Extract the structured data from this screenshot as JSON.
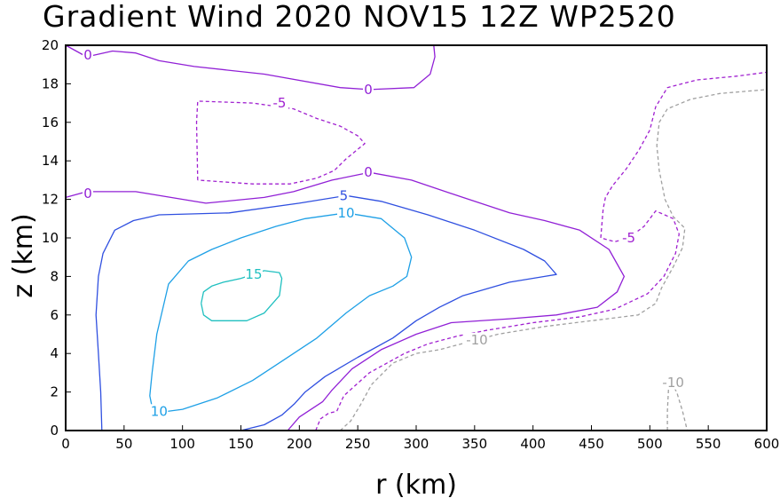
{
  "chart_data": {
    "type": "contour",
    "title": "Gradient Wind 2020 NOV15 12Z  WP2520",
    "xlabel": "r (km)",
    "ylabel": "z (km)",
    "xlim": [
      0,
      600
    ],
    "ylim": [
      0,
      20
    ],
    "xticks": [
      "0",
      "50",
      "100",
      "150",
      "200",
      "250",
      "300",
      "350",
      "400",
      "450",
      "500",
      "550",
      "600"
    ],
    "yticks": [
      "0",
      "2",
      "4",
      "6",
      "8",
      "10",
      "12",
      "14",
      "16",
      "18",
      "20"
    ],
    "grid": false,
    "legend": "none",
    "levels": [
      {
        "level": 15,
        "color": "#20c0c0",
        "dashed": false,
        "lines": [
          [
            [
              116,
              6.6
            ],
            [
              118,
              6.0
            ],
            [
              125,
              5.7
            ],
            [
              140,
              5.7
            ],
            [
              155,
              5.7
            ],
            [
              170,
              6.1
            ],
            [
              183,
              7.0
            ],
            [
              185,
              7.9
            ],
            [
              183,
              8.2
            ],
            [
              170,
              8.3
            ],
            [
              150,
              7.9
            ],
            [
              135,
              7.7
            ],
            [
              125,
              7.5
            ],
            [
              118,
              7.2
            ],
            [
              116,
              6.6
            ]
          ]
        ]
      },
      {
        "level": 10,
        "color": "#1ea0e6",
        "dashed": false,
        "lines": [
          [
            [
              75,
              0.9
            ],
            [
              100,
              1.1
            ],
            [
              130,
              1.7
            ],
            [
              160,
              2.6
            ],
            [
              185,
              3.6
            ],
            [
              215,
              4.8
            ],
            [
              240,
              6.1
            ],
            [
              260,
              7.0
            ],
            [
              280,
              7.5
            ],
            [
              292,
              8.0
            ],
            [
              296,
              9.0
            ],
            [
              290,
              10.0
            ],
            [
              270,
              11.0
            ],
            [
              240,
              11.3
            ],
            [
              205,
              11.0
            ],
            [
              180,
              10.6
            ],
            [
              150,
              10.0
            ],
            [
              125,
              9.4
            ],
            [
              105,
              8.8
            ],
            [
              88,
              7.6
            ],
            [
              78,
              5.0
            ],
            [
              74,
              3.0
            ],
            [
              72,
              1.8
            ],
            [
              75,
              0.9
            ]
          ]
        ]
      },
      {
        "level": 5,
        "color": "#3050e0",
        "dashed": false,
        "lines": [
          [
            [
              31,
              0
            ],
            [
              30,
              2.0
            ],
            [
              28,
              4.0
            ],
            [
              26,
              6.0
            ],
            [
              28,
              8.0
            ],
            [
              32,
              9.2
            ],
            [
              42,
              10.4
            ],
            [
              58,
              10.9
            ],
            [
              80,
              11.2
            ],
            [
              140,
              11.3
            ],
            [
              200,
              11.8
            ],
            [
              240,
              12.2
            ],
            [
              270,
              11.9
            ],
            [
              310,
              11.2
            ],
            [
              350,
              10.4
            ],
            [
              392,
              9.4
            ],
            [
              410,
              8.8
            ],
            [
              420,
              8.1
            ],
            [
              410,
              8.0
            ],
            [
              380,
              7.7
            ],
            [
              340,
              7.0
            ],
            [
              320,
              6.4
            ],
            [
              300,
              5.7
            ],
            [
              280,
              4.8
            ],
            [
              250,
              3.8
            ],
            [
              222,
              2.8
            ],
            [
              205,
              2.0
            ],
            [
              196,
              1.4
            ],
            [
              185,
              0.8
            ],
            [
              170,
              0.3
            ],
            [
              150,
              0
            ]
          ]
        ]
      },
      {
        "level": 0,
        "color": "#9120d6",
        "dashed": false,
        "lines": [
          [
            [
              0,
              20
            ],
            [
              18,
              19.4
            ],
            [
              40,
              19.7
            ],
            [
              60,
              19.6
            ],
            [
              80,
              19.2
            ],
            [
              110,
              18.9
            ],
            [
              170,
              18.5
            ],
            [
              235,
              17.8
            ],
            [
              260,
              17.7
            ],
            [
              298,
              17.8
            ],
            [
              312,
              18.5
            ],
            [
              316,
              19.4
            ],
            [
              315,
              20
            ]
          ],
          [
            [
              0,
              12.1
            ],
            [
              18,
              12.4
            ],
            [
              60,
              12.4
            ],
            [
              120,
              11.8
            ],
            [
              170,
              12.1
            ],
            [
              195,
              12.4
            ],
            [
              228,
              13.0
            ],
            [
              260,
              13.4
            ],
            [
              296,
              13.0
            ],
            [
              340,
              12.1
            ],
            [
              380,
              11.3
            ],
            [
              410,
              10.9
            ],
            [
              440,
              10.4
            ],
            [
              465,
              9.4
            ],
            [
              478,
              8.0
            ],
            [
              472,
              7.2
            ],
            [
              455,
              6.4
            ],
            [
              420,
              6.0
            ],
            [
              380,
              5.8
            ],
            [
              330,
              5.6
            ],
            [
              300,
              5.0
            ],
            [
              270,
              4.2
            ],
            [
              245,
              3.2
            ],
            [
              228,
              2.1
            ],
            [
              220,
              1.5
            ],
            [
              200,
              0.7
            ],
            [
              190,
              0
            ]
          ]
        ]
      },
      {
        "level": -5,
        "color": "#a020d0",
        "dashed": true,
        "lines": [
          [
            [
              113,
              13.0
            ],
            [
              112,
              16.0
            ],
            [
              113,
              17.1
            ],
            [
              160,
              17.0
            ],
            [
              195,
              16.7
            ],
            [
              215,
              16.2
            ],
            [
              235,
              15.8
            ],
            [
              250,
              15.3
            ],
            [
              256,
              14.9
            ],
            [
              240,
              14.1
            ],
            [
              230,
              13.5
            ],
            [
              215,
              13.1
            ],
            [
              192,
              12.8
            ],
            [
              160,
              12.8
            ],
            [
              113,
              13.0
            ]
          ],
          [
            [
              214,
              0
            ],
            [
              218,
              0.6
            ],
            [
              225,
              0.9
            ],
            [
              232,
              1.0
            ],
            [
              238,
              1.8
            ],
            [
              260,
              3.0
            ],
            [
              290,
              4.0
            ],
            [
              310,
              4.5
            ],
            [
              335,
              4.9
            ],
            [
              360,
              5.2
            ],
            [
              400,
              5.6
            ],
            [
              440,
              5.9
            ],
            [
              470,
              6.3
            ],
            [
              498,
              7.1
            ],
            [
              512,
              8.0
            ],
            [
              522,
              9.2
            ],
            [
              525,
              10.2
            ],
            [
              520,
              11.0
            ],
            [
              505,
              11.4
            ],
            [
              495,
              10.6
            ],
            [
              482,
              10.0
            ],
            [
              470,
              9.8
            ],
            [
              458,
              10.0
            ],
            [
              460,
              11.5
            ],
            [
              462,
              12.1
            ],
            [
              468,
              12.7
            ],
            [
              480,
              13.6
            ],
            [
              491,
              14.6
            ],
            [
              500,
              15.6
            ],
            [
              505,
              16.8
            ],
            [
              515,
              17.8
            ],
            [
              540,
              18.2
            ],
            [
              575,
              18.4
            ],
            [
              600,
              18.6
            ]
          ]
        ]
      },
      {
        "level": -10,
        "color": "#a0a0a0",
        "dashed": true,
        "lines": [
          [
            [
              235,
              0
            ],
            [
              244,
              0.5
            ],
            [
              252,
              1.3
            ],
            [
              262,
              2.4
            ],
            [
              280,
              3.5
            ],
            [
              300,
              4.0
            ],
            [
              320,
              4.2
            ],
            [
              345,
              4.6
            ],
            [
              370,
              5.0
            ],
            [
              410,
              5.4
            ],
            [
              450,
              5.7
            ],
            [
              490,
              6.0
            ],
            [
              505,
              6.6
            ],
            [
              510,
              7.4
            ],
            [
              520,
              8.5
            ],
            [
              528,
              9.5
            ],
            [
              530,
              10.5
            ],
            [
              520,
              11.1
            ],
            [
              513,
              12.0
            ],
            [
              508,
              13.5
            ],
            [
              506,
              14.8
            ],
            [
              508,
              16.0
            ],
            [
              515,
              16.7
            ],
            [
              535,
              17.2
            ],
            [
              560,
              17.5
            ],
            [
              600,
              17.7
            ]
          ],
          [
            [
              515,
              0
            ],
            [
              515,
              1.0
            ],
            [
              516,
              2.2
            ],
            [
              520,
              2.3
            ],
            [
              523,
              2.0
            ],
            [
              528,
              1.0
            ],
            [
              532,
              0
            ]
          ]
        ]
      }
    ],
    "contour_labels": [
      {
        "text": "0",
        "x": 19,
        "y": 19.5,
        "color": "#9120d6"
      },
      {
        "text": "0",
        "x": 259,
        "y": 17.7,
        "color": "#9120d6"
      },
      {
        "text": "0",
        "x": 19,
        "y": 12.3,
        "color": "#9120d6"
      },
      {
        "text": "0",
        "x": 259,
        "y": 13.4,
        "color": "#9120d6"
      },
      {
        "text": "-5",
        "x": 183,
        "y": 17.0,
        "color": "#a020d0"
      },
      {
        "text": "-5",
        "x": 482,
        "y": 10.0,
        "color": "#a020d0"
      },
      {
        "text": "5",
        "x": 238,
        "y": 12.2,
        "color": "#3050e0"
      },
      {
        "text": "10",
        "x": 240,
        "y": 11.3,
        "color": "#1ea0e6"
      },
      {
        "text": "10",
        "x": 80,
        "y": 1.0,
        "color": "#1ea0e6"
      },
      {
        "text": "15",
        "x": 161,
        "y": 8.1,
        "color": "#20c0c0"
      },
      {
        "text": "-10",
        "x": 352,
        "y": 4.7,
        "color": "#a0a0a0"
      },
      {
        "text": "-10",
        "x": 520,
        "y": 2.5,
        "color": "#a0a0a0"
      }
    ]
  }
}
